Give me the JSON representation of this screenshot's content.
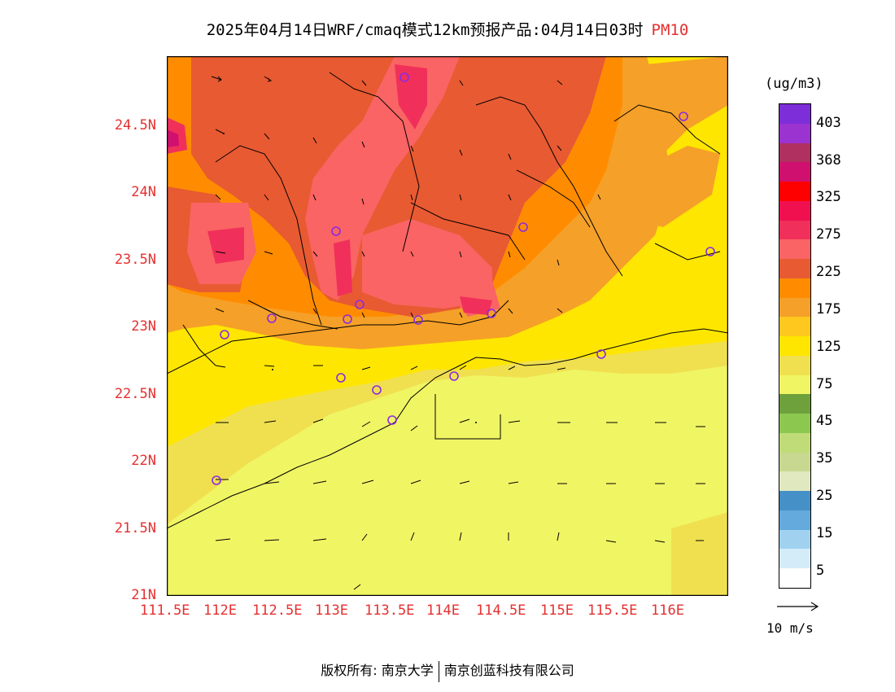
{
  "title": {
    "text": "2025年04月14日WRF/cmaq模式12km预报产品:04月14日03时",
    "variable": "PM10"
  },
  "map": {
    "lat_ticks": [
      "21N",
      "21.5N",
      "22N",
      "22.5N",
      "23N",
      "23.5N",
      "24N",
      "24.5N"
    ],
    "lon_ticks": [
      "111.5E",
      "112E",
      "112.5E",
      "113E",
      "113.5E",
      "114E",
      "114.5E",
      "115E",
      "115.5E",
      "116E"
    ]
  },
  "colorbar": {
    "unit": "(ug/m3)",
    "colors": [
      "#7d2ed8",
      "#9b33d0",
      "#b03060",
      "#d0106e",
      "#ff0000",
      "#f01050",
      "#f0305a",
      "#fa6464",
      "#e85a32",
      "#ff8c00",
      "#f5a028",
      "#ffc81e",
      "#ffe600",
      "#f0e050",
      "#f0f564",
      "#6ea03c",
      "#8cc850",
      "#c0dc78",
      "#c8d890",
      "#e0e8c0",
      "#4690c8",
      "#64aadc",
      "#a0d2f0",
      "#d4ecf8",
      "#ffffff"
    ],
    "labels": [
      "403",
      "368",
      "325",
      "275",
      "225",
      "175",
      "125",
      "75",
      "45",
      "35",
      "25",
      "15",
      "5"
    ]
  },
  "wind_reference": {
    "label": "10 m/s"
  },
  "footer": {
    "left": "版权所有: 南京大学",
    "right": "南京创蓝科技有限公司"
  }
}
